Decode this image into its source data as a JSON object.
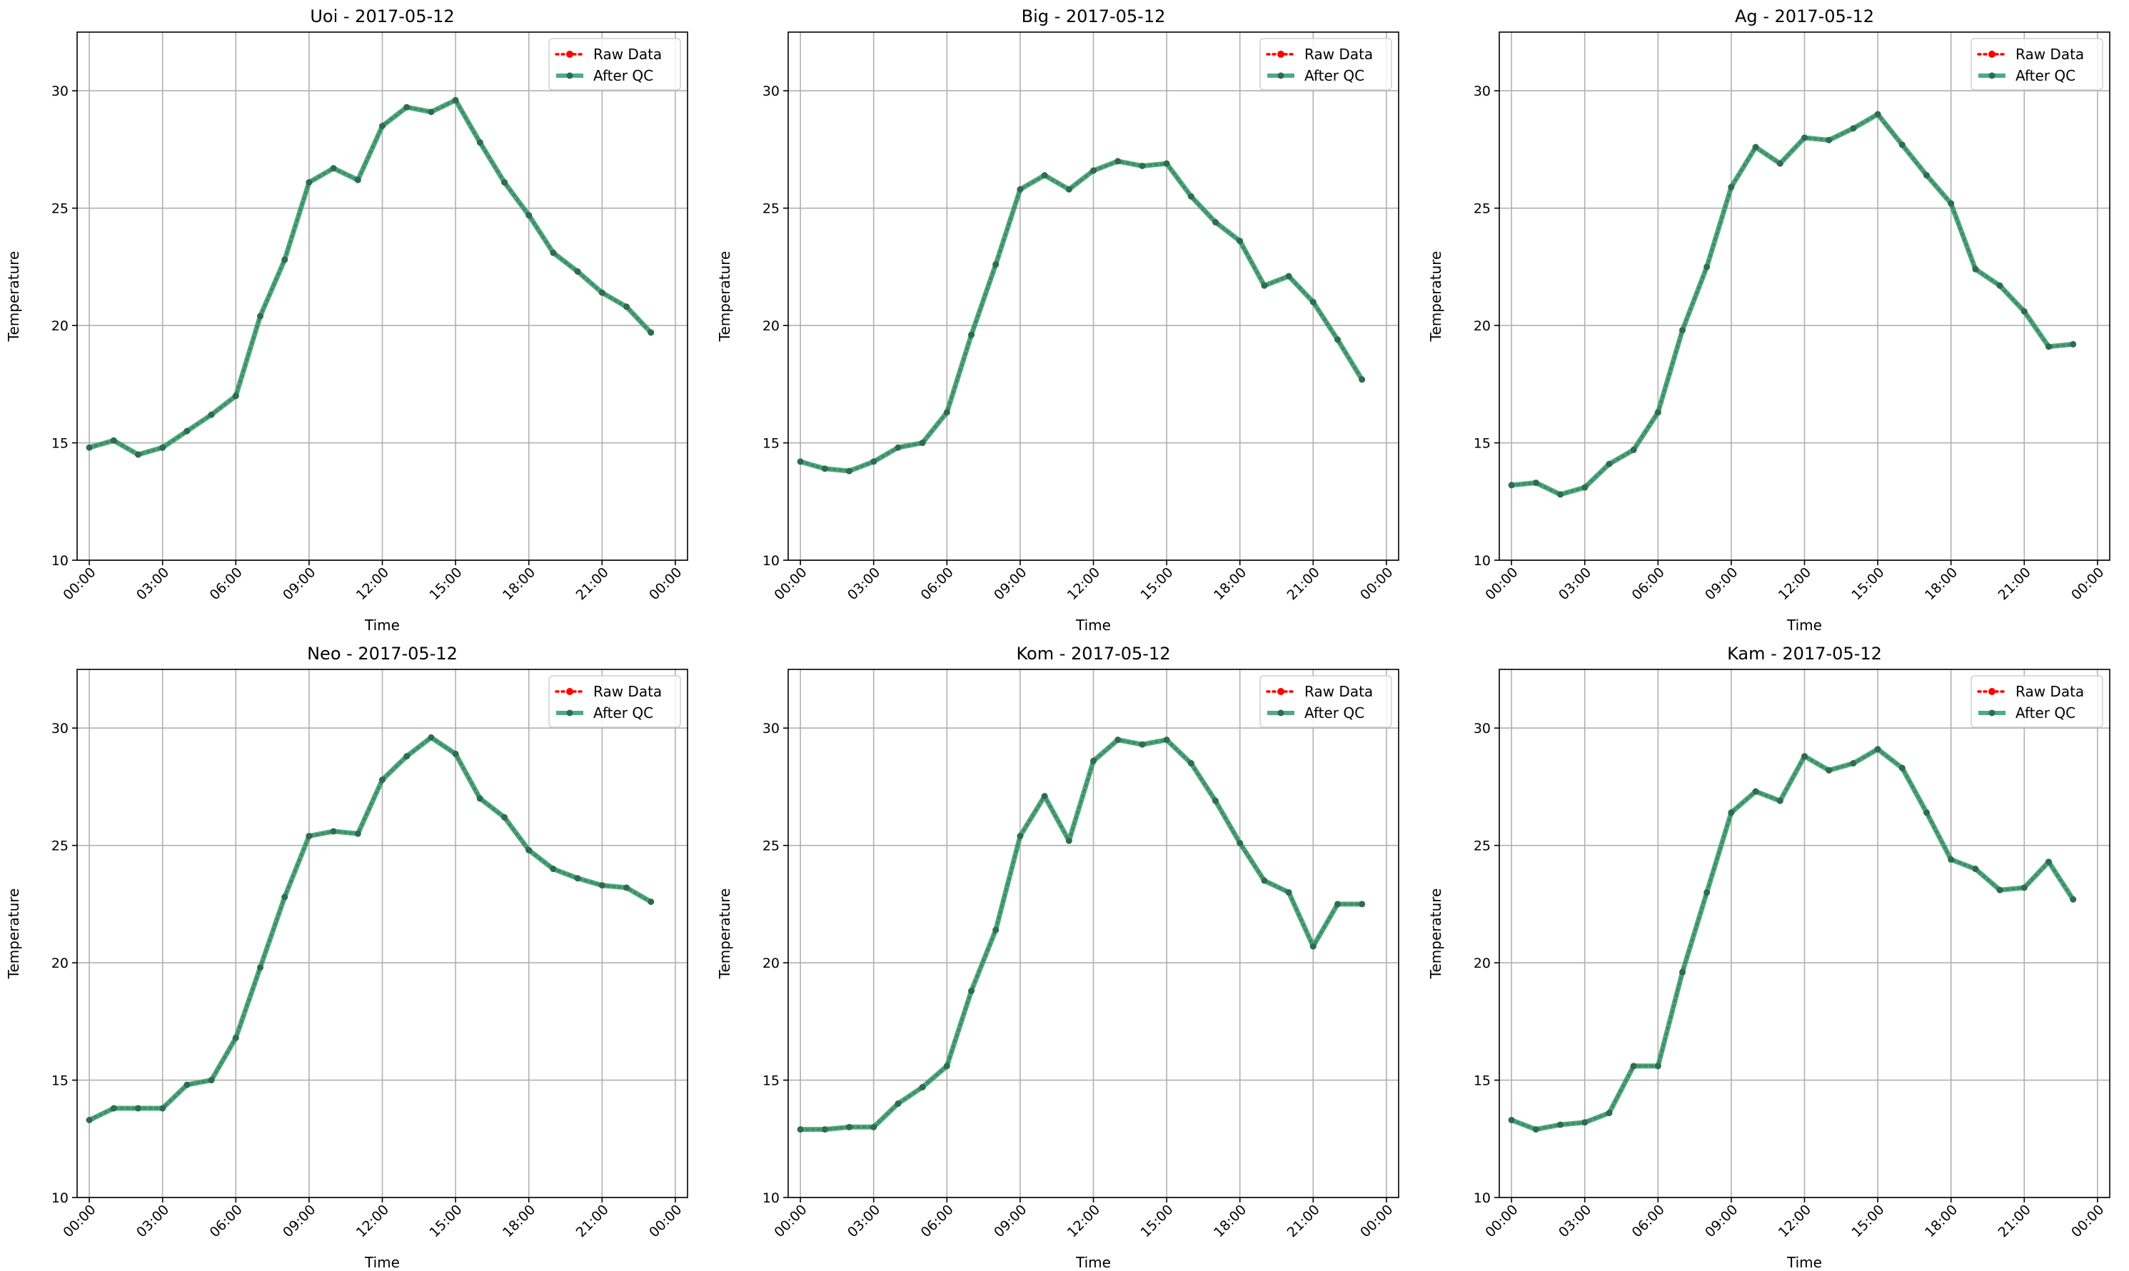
{
  "colors": {
    "raw": "#ff0000",
    "qc": "#2a9d6f",
    "marker": "#2e6b52",
    "grid": "#b0b0b0",
    "axis": "#000000"
  },
  "chart_data": [
    {
      "type": "line",
      "title": "Uoi - 2017-05-12",
      "xlabel": "Time",
      "ylabel": "Temperature",
      "ylim": [
        10,
        32.5
      ],
      "yticks": [
        10,
        15,
        20,
        25,
        30
      ],
      "xticks": [
        "00:00",
        "03:00",
        "06:00",
        "09:00",
        "12:00",
        "15:00",
        "18:00",
        "21:00",
        "00:00"
      ],
      "x_hours": [
        0,
        1,
        2,
        3,
        4,
        5,
        6,
        7,
        8,
        9,
        10,
        11,
        12,
        13,
        14,
        15,
        16,
        17,
        18,
        19,
        20,
        21,
        22,
        23
      ],
      "grid": true,
      "legend": "top-right",
      "series": [
        {
          "name": "Raw Data",
          "values": [
            14.8,
            15.1,
            14.5,
            14.8,
            15.5,
            16.2,
            17.0,
            20.4,
            22.8,
            26.1,
            26.7,
            26.2,
            28.5,
            29.3,
            29.1,
            29.6,
            27.8,
            26.1,
            24.7,
            23.1,
            22.3,
            21.4,
            20.8,
            19.7
          ]
        },
        {
          "name": "After QC",
          "values": [
            14.8,
            15.1,
            14.5,
            14.8,
            15.5,
            16.2,
            17.0,
            20.4,
            22.8,
            26.1,
            26.7,
            26.2,
            28.5,
            29.3,
            29.1,
            29.6,
            27.8,
            26.1,
            24.7,
            23.1,
            22.3,
            21.4,
            20.8,
            19.7
          ]
        }
      ]
    },
    {
      "type": "line",
      "title": "Big - 2017-05-12",
      "xlabel": "Time",
      "ylabel": "Temperature",
      "ylim": [
        10,
        32.5
      ],
      "yticks": [
        10,
        15,
        20,
        25,
        30
      ],
      "xticks": [
        "00:00",
        "03:00",
        "06:00",
        "09:00",
        "12:00",
        "15:00",
        "18:00",
        "21:00",
        "00:00"
      ],
      "x_hours": [
        0,
        1,
        2,
        3,
        4,
        5,
        6,
        7,
        8,
        9,
        10,
        11,
        12,
        13,
        14,
        15,
        16,
        17,
        18,
        19,
        20,
        21,
        22,
        23
      ],
      "grid": true,
      "legend": "top-right",
      "series": [
        {
          "name": "Raw Data",
          "values": [
            14.2,
            13.9,
            13.8,
            14.2,
            14.8,
            15.0,
            16.3,
            19.6,
            22.6,
            25.8,
            26.4,
            25.8,
            26.6,
            27.0,
            26.8,
            26.9,
            25.5,
            24.4,
            23.6,
            21.7,
            22.1,
            21.0,
            19.4,
            17.7
          ]
        },
        {
          "name": "After QC",
          "values": [
            14.2,
            13.9,
            13.8,
            14.2,
            14.8,
            15.0,
            16.3,
            19.6,
            22.6,
            25.8,
            26.4,
            25.8,
            26.6,
            27.0,
            26.8,
            26.9,
            25.5,
            24.4,
            23.6,
            21.7,
            22.1,
            21.0,
            19.4,
            17.7
          ]
        }
      ]
    },
    {
      "type": "line",
      "title": "Ag - 2017-05-12",
      "xlabel": "Time",
      "ylabel": "Temperature",
      "ylim": [
        10,
        32.5
      ],
      "yticks": [
        10,
        15,
        20,
        25,
        30
      ],
      "xticks": [
        "00:00",
        "03:00",
        "06:00",
        "09:00",
        "12:00",
        "15:00",
        "18:00",
        "21:00",
        "00:00"
      ],
      "x_hours": [
        0,
        1,
        2,
        3,
        4,
        5,
        6,
        7,
        8,
        9,
        10,
        11,
        12,
        13,
        14,
        15,
        16,
        17,
        18,
        19,
        20,
        21,
        22,
        23
      ],
      "grid": true,
      "legend": "top-right",
      "series": [
        {
          "name": "Raw Data",
          "values": [
            13.2,
            13.3,
            12.8,
            13.1,
            14.1,
            14.7,
            16.3,
            19.8,
            22.5,
            25.9,
            27.6,
            26.9,
            28.0,
            27.9,
            28.4,
            29.0,
            27.7,
            26.4,
            25.2,
            22.4,
            21.7,
            20.6,
            19.1,
            19.2
          ]
        },
        {
          "name": "After QC",
          "values": [
            13.2,
            13.3,
            12.8,
            13.1,
            14.1,
            14.7,
            16.3,
            19.8,
            22.5,
            25.9,
            27.6,
            26.9,
            28.0,
            27.9,
            28.4,
            29.0,
            27.7,
            26.4,
            25.2,
            22.4,
            21.7,
            20.6,
            19.1,
            19.2
          ]
        }
      ]
    },
    {
      "type": "line",
      "title": "Neo - 2017-05-12",
      "xlabel": "Time",
      "ylabel": "Temperature",
      "ylim": [
        10,
        32.5
      ],
      "yticks": [
        10,
        15,
        20,
        25,
        30
      ],
      "xticks": [
        "00:00",
        "03:00",
        "06:00",
        "09:00",
        "12:00",
        "15:00",
        "18:00",
        "21:00",
        "00:00"
      ],
      "x_hours": [
        0,
        1,
        2,
        3,
        4,
        5,
        6,
        7,
        8,
        9,
        10,
        11,
        12,
        13,
        14,
        15,
        16,
        17,
        18,
        19,
        20,
        21,
        22,
        23
      ],
      "grid": true,
      "legend": "top-right",
      "series": [
        {
          "name": "Raw Data",
          "values": [
            13.3,
            13.8,
            13.8,
            13.8,
            14.8,
            15.0,
            16.8,
            19.8,
            22.8,
            25.4,
            25.6,
            25.5,
            27.8,
            28.8,
            29.6,
            28.9,
            27.0,
            26.2,
            24.8,
            24.0,
            23.6,
            23.3,
            23.2,
            22.6
          ]
        },
        {
          "name": "After QC",
          "values": [
            13.3,
            13.8,
            13.8,
            13.8,
            14.8,
            15.0,
            16.8,
            19.8,
            22.8,
            25.4,
            25.6,
            25.5,
            27.8,
            28.8,
            29.6,
            28.9,
            27.0,
            26.2,
            24.8,
            24.0,
            23.6,
            23.3,
            23.2,
            22.6
          ]
        }
      ]
    },
    {
      "type": "line",
      "title": "Kom - 2017-05-12",
      "xlabel": "Time",
      "ylabel": "Temperature",
      "ylim": [
        10,
        32.5
      ],
      "yticks": [
        10,
        15,
        20,
        25,
        30
      ],
      "xticks": [
        "00:00",
        "03:00",
        "06:00",
        "09:00",
        "12:00",
        "15:00",
        "18:00",
        "21:00",
        "00:00"
      ],
      "x_hours": [
        0,
        1,
        2,
        3,
        4,
        5,
        6,
        7,
        8,
        9,
        10,
        11,
        12,
        13,
        14,
        15,
        16,
        17,
        18,
        19,
        20,
        21,
        22,
        23
      ],
      "grid": true,
      "legend": "top-right",
      "series": [
        {
          "name": "Raw Data",
          "values": [
            12.9,
            12.9,
            13.0,
            13.0,
            14.0,
            14.7,
            15.6,
            18.8,
            21.4,
            25.4,
            27.1,
            25.2,
            28.6,
            29.5,
            29.3,
            29.5,
            28.5,
            26.9,
            25.1,
            23.5,
            23.0,
            20.7,
            22.5,
            22.5
          ]
        },
        {
          "name": "After QC",
          "values": [
            12.9,
            12.9,
            13.0,
            13.0,
            14.0,
            14.7,
            15.6,
            18.8,
            21.4,
            25.4,
            27.1,
            25.2,
            28.6,
            29.5,
            29.3,
            29.5,
            28.5,
            26.9,
            25.1,
            23.5,
            23.0,
            20.7,
            22.5,
            22.5
          ]
        }
      ]
    },
    {
      "type": "line",
      "title": "Kam - 2017-05-12",
      "xlabel": "Time",
      "ylabel": "Temperature",
      "ylim": [
        10,
        32.5
      ],
      "yticks": [
        10,
        15,
        20,
        25,
        30
      ],
      "xticks": [
        "00:00",
        "03:00",
        "06:00",
        "09:00",
        "12:00",
        "15:00",
        "18:00",
        "21:00",
        "00:00"
      ],
      "x_hours": [
        0,
        1,
        2,
        3,
        4,
        5,
        6,
        7,
        8,
        9,
        10,
        11,
        12,
        13,
        14,
        15,
        16,
        17,
        18,
        19,
        20,
        21,
        22,
        23
      ],
      "grid": true,
      "legend": "top-right",
      "series": [
        {
          "name": "Raw Data",
          "values": [
            13.3,
            12.9,
            13.1,
            13.2,
            13.6,
            15.6,
            15.6,
            19.6,
            23.0,
            26.4,
            27.3,
            26.9,
            28.8,
            28.2,
            28.5,
            29.1,
            28.3,
            26.4,
            24.4,
            24.0,
            23.1,
            23.2,
            24.3,
            22.7
          ]
        },
        {
          "name": "After QC",
          "values": [
            13.3,
            12.9,
            13.1,
            13.2,
            13.6,
            15.6,
            15.6,
            19.6,
            23.0,
            26.4,
            27.3,
            26.9,
            28.8,
            28.2,
            28.5,
            29.1,
            28.3,
            26.4,
            24.4,
            24.0,
            23.1,
            23.2,
            24.3,
            22.7
          ]
        }
      ]
    }
  ]
}
